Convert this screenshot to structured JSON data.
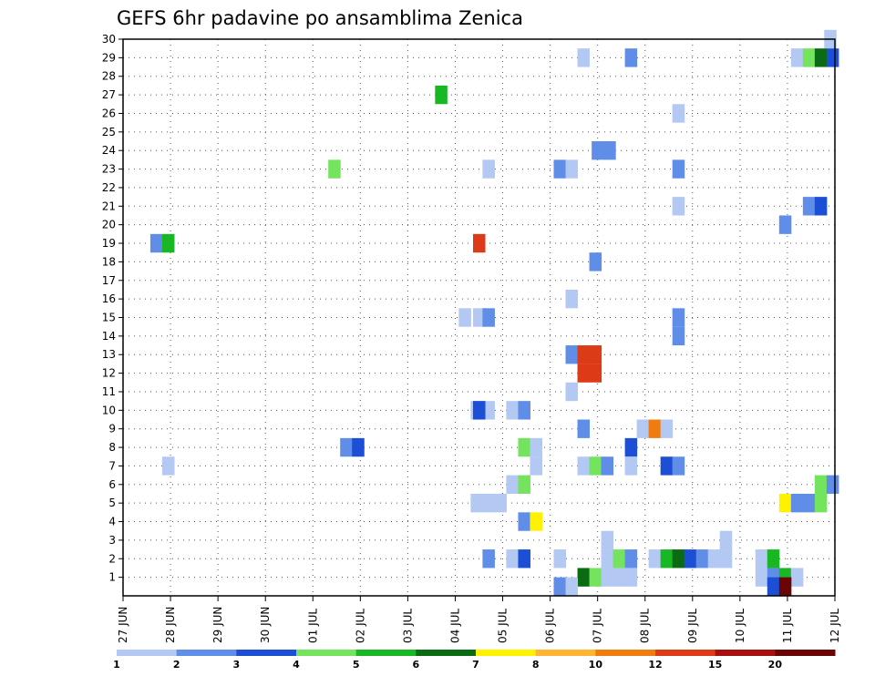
{
  "chart_data": {
    "type": "heatmap",
    "title": "GEFS 6hr padavine po ansamblima Zenica",
    "xlabel": "",
    "ylabel": "",
    "x_tick_labels": [
      "27 JUN",
      "28 JUN",
      "29 JUN",
      "30 JUN",
      "01 JUL",
      "02 JUL",
      "03 JUL",
      "04 JUL",
      "05 JUL",
      "06 JUL",
      "07 JUL",
      "08 JUL",
      "09 JUL",
      "10 JUL",
      "11 JUL",
      "12 JUL"
    ],
    "xlim_days": [
      0,
      15
    ],
    "y_tick_labels": [
      "1",
      "2",
      "3",
      "4",
      "5",
      "6",
      "7",
      "8",
      "9",
      "10",
      "11",
      "12",
      "13",
      "14",
      "15",
      "16",
      "17",
      "18",
      "19",
      "20",
      "21",
      "22",
      "23",
      "24",
      "25",
      "26",
      "27",
      "28",
      "29",
      "30"
    ],
    "ylim": [
      0,
      30
    ],
    "grid": true,
    "colorbar": {
      "levels": [
        "1",
        "2",
        "3",
        "4",
        "5",
        "6",
        "7",
        "8",
        "10",
        "12",
        "15",
        "20"
      ],
      "colors": [
        "#b3c8f2",
        "#5f8de8",
        "#1c4fd6",
        "#74e35e",
        "#17b824",
        "#0b6b12",
        "#fff200",
        "#ffb434",
        "#f07c10",
        "#dd3a17",
        "#a80f0f",
        "#6b0505"
      ],
      "placement": "bottom"
    },
    "cells": [
      {
        "member": 30,
        "x": 14.9,
        "c": 0
      },
      {
        "member": 29,
        "x": 9.7,
        "c": 0
      },
      {
        "member": 29,
        "x": 10.7,
        "c": 1
      },
      {
        "member": 29,
        "x": 14.2,
        "c": 0
      },
      {
        "member": 29,
        "x": 14.45,
        "c": 3
      },
      {
        "member": 29,
        "x": 14.7,
        "c": 5
      },
      {
        "member": 29,
        "x": 14.95,
        "c": 2
      },
      {
        "member": 27,
        "x": 6.7,
        "c": 4
      },
      {
        "member": 26,
        "x": 11.7,
        "c": 0
      },
      {
        "member": 24,
        "x": 10.0,
        "c": 1
      },
      {
        "member": 24,
        "x": 10.25,
        "c": 1
      },
      {
        "member": 23,
        "x": 4.45,
        "c": 3
      },
      {
        "member": 23,
        "x": 7.7,
        "c": 0
      },
      {
        "member": 23,
        "x": 9.2,
        "c": 1
      },
      {
        "member": 23,
        "x": 9.45,
        "c": 0
      },
      {
        "member": 23,
        "x": 11.7,
        "c": 1
      },
      {
        "member": 21,
        "x": 11.7,
        "c": 0
      },
      {
        "member": 21,
        "x": 14.45,
        "c": 1
      },
      {
        "member": 21,
        "x": 14.7,
        "c": 2
      },
      {
        "member": 20,
        "x": 13.95,
        "c": 1
      },
      {
        "member": 19,
        "x": 0.7,
        "c": 1
      },
      {
        "member": 19,
        "x": 0.95,
        "c": 4
      },
      {
        "member": 19,
        "x": 7.5,
        "c": 9
      },
      {
        "member": 18,
        "x": 9.95,
        "c": 1
      },
      {
        "member": 16,
        "x": 9.45,
        "c": 0
      },
      {
        "member": 15,
        "x": 7.2,
        "c": 0
      },
      {
        "member": 15,
        "x": 7.5,
        "c": 0
      },
      {
        "member": 15,
        "x": 7.7,
        "c": 1
      },
      {
        "member": 15,
        "x": 11.7,
        "c": 1
      },
      {
        "member": 14,
        "x": 11.7,
        "c": 1
      },
      {
        "member": 13,
        "x": 9.45,
        "c": 1
      },
      {
        "member": 13,
        "x": 9.7,
        "c": 9
      },
      {
        "member": 13,
        "x": 9.95,
        "c": 9
      },
      {
        "member": 12,
        "x": 9.95,
        "c": 9
      },
      {
        "member": 12,
        "x": 9.7,
        "c": 9
      },
      {
        "member": 11,
        "x": 9.45,
        "c": 0
      },
      {
        "member": 10,
        "x": 7.45,
        "c": 0
      },
      {
        "member": 10,
        "x": 7.7,
        "c": 0
      },
      {
        "member": 10,
        "x": 7.5,
        "c": 2
      },
      {
        "member": 10,
        "x": 8.2,
        "c": 0
      },
      {
        "member": 10,
        "x": 8.45,
        "c": 1
      },
      {
        "member": 9,
        "x": 9.7,
        "c": 1
      },
      {
        "member": 9,
        "x": 10.95,
        "c": 0
      },
      {
        "member": 9,
        "x": 11.2,
        "c": 8
      },
      {
        "member": 9,
        "x": 11.45,
        "c": 0
      },
      {
        "member": 8,
        "x": 4.7,
        "c": 1
      },
      {
        "member": 8,
        "x": 4.95,
        "c": 2
      },
      {
        "member": 8,
        "x": 8.45,
        "c": 3
      },
      {
        "member": 8,
        "x": 8.7,
        "c": 0
      },
      {
        "member": 8,
        "x": 10.7,
        "c": 2
      },
      {
        "member": 7,
        "x": 0.95,
        "c": 0
      },
      {
        "member": 7,
        "x": 8.7,
        "c": 0
      },
      {
        "member": 7,
        "x": 9.7,
        "c": 0
      },
      {
        "member": 7,
        "x": 9.95,
        "c": 3
      },
      {
        "member": 7,
        "x": 10.2,
        "c": 1
      },
      {
        "member": 7,
        "x": 10.7,
        "c": 0
      },
      {
        "member": 7,
        "x": 11.45,
        "c": 2
      },
      {
        "member": 7,
        "x": 11.7,
        "c": 1
      },
      {
        "member": 6,
        "x": 8.2,
        "c": 0
      },
      {
        "member": 6,
        "x": 8.45,
        "c": 3
      },
      {
        "member": 6,
        "x": 14.7,
        "c": 3
      },
      {
        "member": 6,
        "x": 14.95,
        "c": 1
      },
      {
        "member": 5,
        "x": 7.45,
        "c": 0
      },
      {
        "member": 5,
        "x": 7.7,
        "c": 0
      },
      {
        "member": 5,
        "x": 7.95,
        "c": 0
      },
      {
        "member": 5,
        "x": 13.95,
        "c": 6
      },
      {
        "member": 5,
        "x": 14.2,
        "c": 1
      },
      {
        "member": 5,
        "x": 14.45,
        "c": 1
      },
      {
        "member": 5,
        "x": 14.7,
        "c": 3
      },
      {
        "member": 4,
        "x": 8.45,
        "c": 1
      },
      {
        "member": 4,
        "x": 8.7,
        "c": 6
      },
      {
        "member": 3,
        "x": 10.2,
        "c": 0
      },
      {
        "member": 3,
        "x": 12.7,
        "c": 0
      },
      {
        "member": 2,
        "x": 7.7,
        "c": 1
      },
      {
        "member": 2,
        "x": 8.2,
        "c": 0
      },
      {
        "member": 2,
        "x": 8.45,
        "c": 2
      },
      {
        "member": 2,
        "x": 9.2,
        "c": 0
      },
      {
        "member": 2,
        "x": 10.2,
        "c": 0
      },
      {
        "member": 2,
        "x": 10.45,
        "c": 3
      },
      {
        "member": 2,
        "x": 10.7,
        "c": 1
      },
      {
        "member": 2,
        "x": 11.2,
        "c": 0
      },
      {
        "member": 2,
        "x": 11.45,
        "c": 4
      },
      {
        "member": 2,
        "x": 11.7,
        "c": 5
      },
      {
        "member": 2,
        "x": 11.95,
        "c": 2
      },
      {
        "member": 2,
        "x": 12.2,
        "c": 1
      },
      {
        "member": 2,
        "x": 12.45,
        "c": 0
      },
      {
        "member": 2,
        "x": 12.7,
        "c": 0
      },
      {
        "member": 2,
        "x": 13.45,
        "c": 0
      },
      {
        "member": 2,
        "x": 13.7,
        "c": 4
      },
      {
        "member": 1,
        "x": 9.7,
        "c": 5
      },
      {
        "member": 1,
        "x": 9.95,
        "c": 3
      },
      {
        "member": 1,
        "x": 10.2,
        "c": 0
      },
      {
        "member": 1,
        "x": 10.45,
        "c": 0
      },
      {
        "member": 1,
        "x": 10.7,
        "c": 0
      },
      {
        "member": 1,
        "x": 13.45,
        "c": 0
      },
      {
        "member": 1,
        "x": 13.7,
        "c": 1
      },
      {
        "member": 1,
        "x": 13.95,
        "c": 4
      },
      {
        "member": 1,
        "x": 14.2,
        "c": 0
      },
      {
        "member": 0.5,
        "x": 9.2,
        "c": 1
      },
      {
        "member": 0.5,
        "x": 9.45,
        "c": 0
      },
      {
        "member": 0.5,
        "x": 13.7,
        "c": 2
      },
      {
        "member": 0.5,
        "x": 13.95,
        "c": 11
      }
    ]
  }
}
